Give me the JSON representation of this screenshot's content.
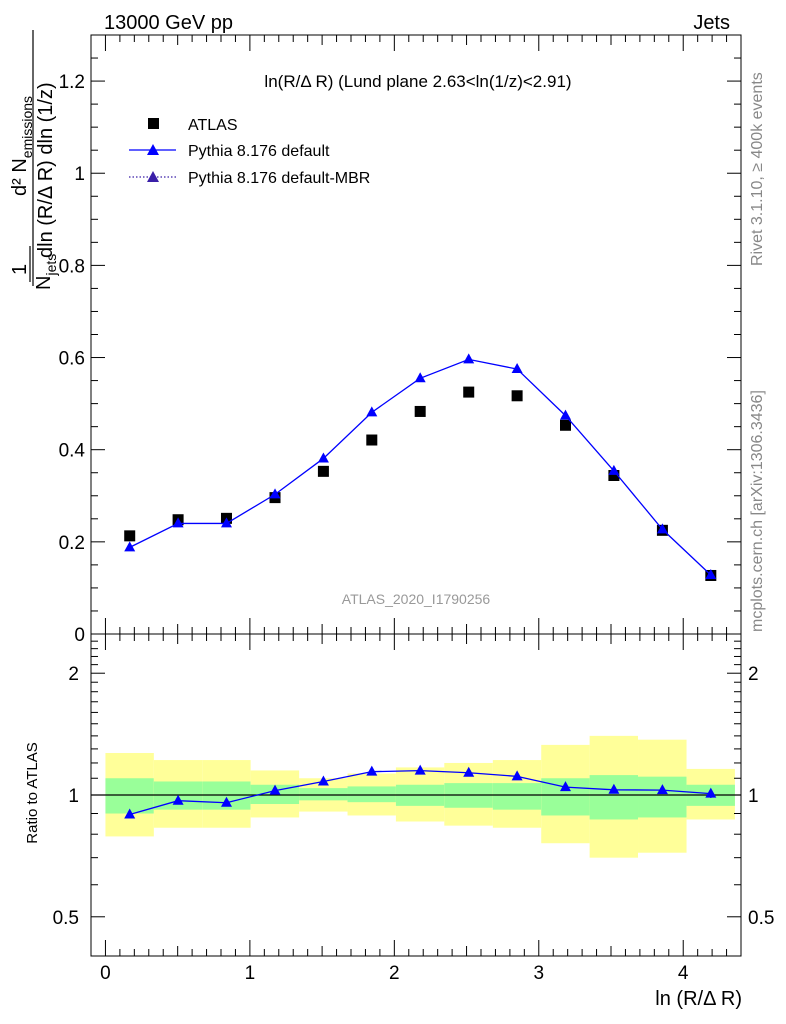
{
  "header": {
    "left": "13000 GeV pp",
    "right": "Jets"
  },
  "side_labels": {
    "rivet": "Rivet 3.1.10, ≥ 400k events",
    "mcplots": "mcplots.cern.ch [arXiv:1306.3436]"
  },
  "chart_data": [
    {
      "type": "scatter",
      "title": "ln(R/Δ R) (Lund plane 2.63<ln(1/z)<2.91)",
      "analysis_id": "ATLAS_2020_I1790256",
      "ylabel": {
        "frac_num": "1",
        "frac_den": "N",
        "frac_den_sub": "jets",
        "d2": "d² N",
        "d2_sub": "emissions",
        "denom": "dln (R/Δ R) dln (1/z)"
      },
      "xlabel": "ln (R/Δ R)",
      "xlim": [
        -0.1,
        4.4
      ],
      "ylim": [
        0,
        1.3
      ],
      "x_ticks": [
        "0",
        "1",
        "2",
        "3",
        "4"
      ],
      "y_ticks": [
        "0",
        "0.2",
        "0.4",
        "0.6",
        "0.8",
        "1",
        "1.2"
      ],
      "legend_position": "top-left",
      "x": [
        0.168,
        0.503,
        0.838,
        1.174,
        1.509,
        1.844,
        2.179,
        2.515,
        2.85,
        3.185,
        3.52,
        3.856,
        4.191
      ],
      "series": [
        {
          "name": "ATLAS",
          "marker": "square",
          "color": "#000000",
          "values": [
            0.213,
            0.248,
            0.251,
            0.296,
            0.353,
            0.421,
            0.483,
            0.525,
            0.517,
            0.453,
            0.344,
            0.225,
            0.127
          ]
        },
        {
          "name": "Pythia 8.176 default",
          "marker": "triangle",
          "line": "solid",
          "color": "#0000ff",
          "values": [
            0.188,
            0.24,
            0.24,
            0.303,
            0.381,
            0.481,
            0.555,
            0.596,
            0.575,
            0.474,
            0.354,
            0.227,
            0.128
          ]
        },
        {
          "name": "Pythia 8.176 default-MBR",
          "marker": "triangle",
          "line": "dotted",
          "color": "#3a1fa8",
          "values": []
        }
      ]
    },
    {
      "type": "line",
      "ylabel": "Ratio to ATLAS",
      "y_scale": "log",
      "ylim": [
        0.4,
        2.5
      ],
      "y_ticks": [
        "0.5",
        "1",
        "2"
      ],
      "x_ticks": [
        "0",
        "1",
        "2",
        "3",
        "4"
      ],
      "x": [
        0.168,
        0.503,
        0.838,
        1.174,
        1.509,
        1.844,
        2.179,
        2.515,
        2.85,
        3.185,
        3.52,
        3.856,
        4.191
      ],
      "reference_line": 1,
      "bin_edges": [
        0.0,
        0.335,
        0.67,
        1.005,
        1.341,
        1.676,
        2.011,
        2.346,
        2.682,
        3.017,
        3.352,
        3.687,
        4.023,
        4.358
      ],
      "band_inner": {
        "color": "#99ff99",
        "lo": [
          0.9,
          0.92,
          0.92,
          0.95,
          0.97,
          0.96,
          0.94,
          0.93,
          0.92,
          0.89,
          0.87,
          0.88,
          0.94
        ],
        "hi": [
          1.1,
          1.08,
          1.08,
          1.06,
          1.04,
          1.05,
          1.06,
          1.07,
          1.07,
          1.1,
          1.12,
          1.11,
          1.06
        ]
      },
      "band_outer": {
        "color": "#ffff99",
        "lo": [
          0.79,
          0.83,
          0.83,
          0.88,
          0.91,
          0.89,
          0.86,
          0.84,
          0.83,
          0.76,
          0.7,
          0.72,
          0.87
        ],
        "hi": [
          1.27,
          1.22,
          1.22,
          1.15,
          1.1,
          1.13,
          1.17,
          1.2,
          1.22,
          1.33,
          1.4,
          1.37,
          1.16
        ]
      },
      "series": [
        {
          "name": "Pythia 8.176 default",
          "color": "#0000ff",
          "values": [
            0.895,
            0.968,
            0.957,
            1.025,
            1.08,
            1.142,
            1.149,
            1.135,
            1.112,
            1.046,
            1.03,
            1.028,
            1.008
          ],
          "errors": [
            0.015,
            0.012,
            0.01,
            0.01,
            0.009,
            0.009,
            0.009,
            0.01,
            0.01,
            0.01,
            0.012,
            0.015,
            0.025
          ]
        }
      ]
    }
  ]
}
